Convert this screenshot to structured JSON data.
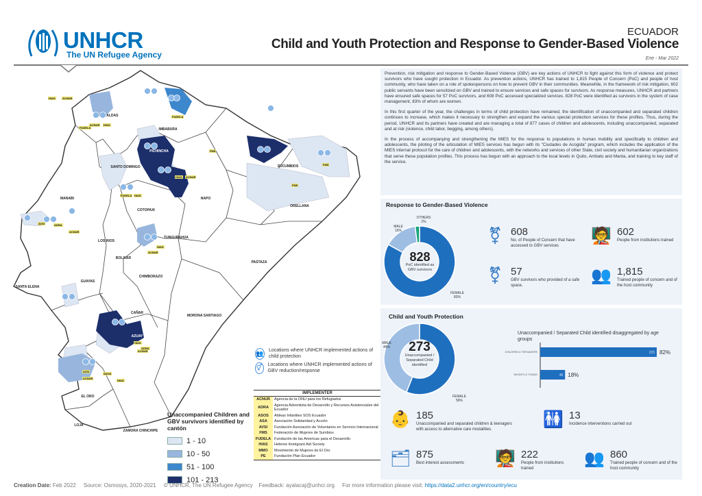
{
  "header": {
    "logo_name": "UNHCR",
    "logo_tagline": "The UN Refugee Agency",
    "country": "ECUADOR",
    "title": "Child and Youth Protection and Response to Gender-Based Violence",
    "period": "Ene - Mar 2022"
  },
  "intro": {
    "paragraphs": [
      "Prevention, risk mitigation and response to Gender-Based Violence (GBV) are key actions of UNHCR to fight against this form of violence and protect survivors who have sought protection in Ecuador. As prevention actions, UNHCR has trained to 1,815 People of Concern (PoC) and people of host community, who have taken on a role of spokespersons on how to prevent GBV in their communities. Meanwhile, in the framework of risk mitigation, 602 public servants have been sensitized on GBV and trained to ensure services and safe spaces for survivors. As response measures, UNHCR and partners have ensured safe spaces for 57 PoC survivors, and 608 PoC accessed specialized services. 828 PoC were identified as survivors in the system of case management, 83% of whom are women.",
      "In this first quarter of the year, the challenges in terms of child protection have remained, the identification of unaccompanied and separated children continues to increase, which makes it necessary to strengthen and expand the various special protection services for these profiles. Thus, during the period, UNHCR and its partners have created and are managing a total of 877 cases of children and adolescents, including unaccompanied, separated and at risk (violence, child labor, begging, among others).",
      "In the process of accompanying and strengthening the MIES for the response to populations in human mobility and specifically to children and adolescents, the piloting of the articulation of MIES services has begun with its \"Ciudades de Acogida\" program, which includes the application of the MIES internal protocol for the care of children and adolescents, with the networks and services of other State, civil society and humanitarian organizations that serve these population profiles. This process has begun with an approach to the local levels in Quito, Ambato and Manta, and training to key staff of the service."
    ]
  },
  "gbv": {
    "title": "Response to Gender-Based Violence",
    "donut_total": "828",
    "donut_caption": "PoC identified as GBV survivors",
    "stats": [
      {
        "value": "608",
        "label": "No. of People of Concern that have accessed to GBV services",
        "icon": "gender-symbol-icon"
      },
      {
        "value": "602",
        "label": "People from institutions trained",
        "icon": "trainer-icon"
      },
      {
        "value": "57",
        "label": "GBV survivors who provided of a safe space.",
        "icon": "hands-gender-icon"
      },
      {
        "value": "1,815",
        "label": "Trained people of concern and of the host community",
        "icon": "trainer-group-icon"
      }
    ]
  },
  "cyp": {
    "title": "Child and Youth Protection",
    "donut_total": "273",
    "donut_caption": "Unaccompanied / Separated Child identified",
    "bar_title": "Unaccompanied / Separated Child identified disaggregated by age groups",
    "stats": [
      {
        "value": "185",
        "label": "Unaccompanied and separated children & teenagers with access to alternative care modalities.",
        "icon": "hands-child-icon"
      },
      {
        "value": "13",
        "label": "Incidence interventions carried out",
        "icon": "children-icon"
      },
      {
        "value": "875",
        "label": "Best interest assessments",
        "icon": "assessment-icon"
      },
      {
        "value": "222",
        "label": "People from institutions trained",
        "icon": "trainer-icon"
      },
      {
        "value": "860",
        "label": "Trained people of concern and of the host community",
        "icon": "trainer-group-icon"
      }
    ]
  },
  "chart_data": [
    {
      "type": "pie",
      "title": "",
      "categories": [
        "FEMALE",
        "MALE",
        "OTHERS"
      ],
      "values": [
        83,
        15,
        2
      ],
      "unit": "%",
      "colors": [
        "#1f6fbf",
        "#9dbde3",
        "#1aa37a"
      ],
      "center_value": 828
    },
    {
      "type": "pie",
      "title": "",
      "categories": [
        "FEMALE",
        "MALE"
      ],
      "values": [
        56,
        44
      ],
      "unit": "%",
      "colors": [
        "#1f6fbf",
        "#9dbde3"
      ],
      "center_value": 273
    },
    {
      "type": "bar",
      "orientation": "horizontal",
      "title": "Unaccompanied / Separated Child identified disaggregated by age groups",
      "categories": [
        "CHILDREN & TEENAGERS",
        "INFANTS & YOUNG"
      ],
      "values": [
        225,
        48
      ],
      "percent_labels": [
        "82%",
        "18%"
      ],
      "color": "#1f6fbf"
    }
  ],
  "map": {
    "provinces": [
      "ESMERALDAS",
      "IMBABURA",
      "PICHINCHA",
      "SANTO DOMINGO",
      "MANABI",
      "COTOPAXI",
      "NAPO",
      "SUCUMBIOS",
      "ORELLANA",
      "TUNGURAHUA",
      "LOS RIOS",
      "BOLIVAR",
      "PASTAZA",
      "CHIMBORAZO",
      "GUAYAS",
      "SANTA ELENA",
      "CAÑAR",
      "MORONA SANTIAGO",
      "AZUAY",
      "EL ORO",
      "LOJA",
      "ZAMORA CHINCHIPE"
    ],
    "tags": [
      "HIAS",
      "ACNUR",
      "ACNUR",
      "HIAS",
      "FUDELA",
      "FUDELA",
      "HIAS",
      "ACNUR",
      "FMS",
      "FMS",
      "FMS",
      "FUDELA",
      "HIAS",
      "AVSI",
      "ADRA",
      "ACNUR",
      "HIAS",
      "ACNUR",
      "AVSI",
      "ACNUR",
      "HIAS",
      "ADRA",
      "ACNUR",
      "ASOS",
      "HIAS"
    ],
    "legend_child": "Locations where UNHCR implemented actions of child protection",
    "legend_gbv": "Locations where UNHCR implemented actions of GBV reduction/response",
    "choropleth_title": "Unaccompanied Children and GBV survivors identified by cantón",
    "classes": [
      {
        "label": "1 - 10",
        "color": "#dde6f3"
      },
      {
        "label": "10 - 50",
        "color": "#98b6dd"
      },
      {
        "label": "51 - 100",
        "color": "#3d87cc"
      },
      {
        "label": "101 - 213",
        "color": "#1c2f6b"
      }
    ]
  },
  "implementer": {
    "title": "IMPLEMENTER",
    "rows": [
      {
        "code": "ACNUR",
        "name": "Agencia de la ONU para los Refugiados"
      },
      {
        "code": "ADRA",
        "name": "Agencia Adventista de Desarrollo y Recursos Asistenciales del Ecuador"
      },
      {
        "code": "ASOS",
        "name": "Aldeas Infantiles SOS Ecuador"
      },
      {
        "code": "ASA",
        "name": "Asociación Solidaridad y Acción"
      },
      {
        "code": "AVSI",
        "name": "Fundación Asociación de Voluntarios en Servicio Internacional"
      },
      {
        "code": "FMS",
        "name": "Federación de Mujeres de Sumbios"
      },
      {
        "code": "FUDELA",
        "name": "Fundación de las Americas para el Desarrollo"
      },
      {
        "code": "HIAS",
        "name": "Hebrew Immigrant Aid Society"
      },
      {
        "code": "MMO",
        "name": "Movimiento de Mujeres de El Oro"
      },
      {
        "code": "PE",
        "name": "Fundación Plan Ecuador"
      }
    ]
  },
  "footer": {
    "creation_label": "Creation Date:",
    "creation_value": "Feb 2022",
    "source": "Source: Osmosys, 2020-2021",
    "copyright": "© UNHCR, The UN Refugee Agency",
    "feedback": "Feedback: ayalacaj@unhcr.org",
    "more_info": "For more information please visit:",
    "link": "https://data2.unhcr.org/en/country/ecu"
  }
}
